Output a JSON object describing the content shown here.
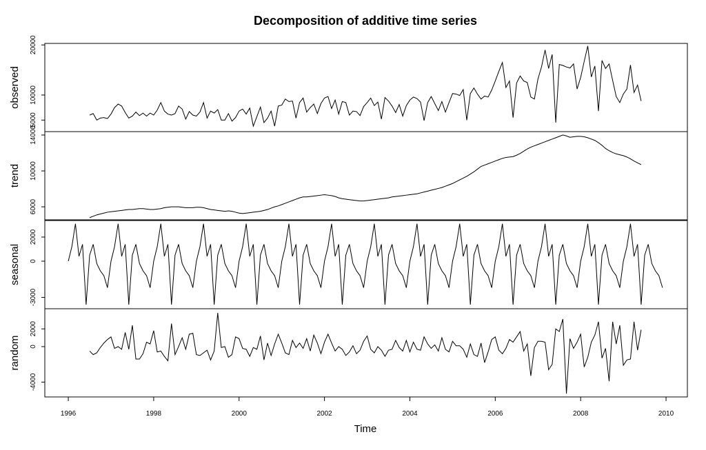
{
  "chart_data": {
    "type": "line",
    "title": "Decomposition of additive time series",
    "xlabel": "Time",
    "xlim": [
      1995.45,
      2010.5
    ],
    "xticks": [
      1996,
      1998,
      2000,
      2002,
      2004,
      2006,
      2008,
      2010
    ],
    "x": [
      1996,
      1996.083,
      1996.167,
      1996.25,
      1996.333,
      1996.417,
      1996.5,
      1996.583,
      1996.667,
      1996.75,
      1996.833,
      1996.917,
      1997,
      1997.083,
      1997.167,
      1997.25,
      1997.333,
      1997.417,
      1997.5,
      1997.583,
      1997.667,
      1997.75,
      1997.833,
      1997.917,
      1998,
      1998.083,
      1998.167,
      1998.25,
      1998.333,
      1998.417,
      1998.5,
      1998.583,
      1998.667,
      1998.75,
      1998.833,
      1998.917,
      1999,
      1999.083,
      1999.167,
      1999.25,
      1999.333,
      1999.417,
      1999.5,
      1999.583,
      1999.667,
      1999.75,
      1999.833,
      1999.917,
      2000,
      2000.083,
      2000.167,
      2000.25,
      2000.333,
      2000.417,
      2000.5,
      2000.583,
      2000.667,
      2000.75,
      2000.833,
      2000.917,
      2001,
      2001.083,
      2001.167,
      2001.25,
      2001.333,
      2001.417,
      2001.5,
      2001.583,
      2001.667,
      2001.75,
      2001.833,
      2001.917,
      2002,
      2002.083,
      2002.167,
      2002.25,
      2002.333,
      2002.417,
      2002.5,
      2002.583,
      2002.667,
      2002.75,
      2002.833,
      2002.917,
      2003,
      2003.083,
      2003.167,
      2003.25,
      2003.333,
      2003.417,
      2003.5,
      2003.583,
      2003.667,
      2003.75,
      2003.833,
      2003.917,
      2004,
      2004.083,
      2004.167,
      2004.25,
      2004.333,
      2004.417,
      2004.5,
      2004.583,
      2004.667,
      2004.75,
      2004.833,
      2004.917,
      2005,
      2005.083,
      2005.167,
      2005.25,
      2005.333,
      2005.417,
      2005.5,
      2005.583,
      2005.667,
      2005.75,
      2005.833,
      2005.917,
      2006,
      2006.083,
      2006.167,
      2006.25,
      2006.333,
      2006.417,
      2006.5,
      2006.583,
      2006.667,
      2006.75,
      2006.833,
      2006.917,
      2007,
      2007.083,
      2007.167,
      2007.25,
      2007.333,
      2007.417,
      2007.5,
      2007.583,
      2007.667,
      2007.75,
      2007.833,
      2007.917,
      2008,
      2008.083,
      2008.167,
      2008.25,
      2008.333,
      2008.417,
      2008.5,
      2008.583,
      2008.667,
      2008.75,
      2008.833,
      2008.917,
      2009,
      2009.083,
      2009.167,
      2009.25,
      2009.333,
      2009.417,
      2009.5,
      2009.583,
      2009.667,
      2009.75,
      2009.833,
      2009.917
    ],
    "series": [
      {
        "name": "observed",
        "color": "#000000",
        "ylim": [
          2700,
          20300
        ],
        "yticks": [
          5000,
          10000,
          20000
        ],
        "values": [
          null,
          null,
          null,
          null,
          null,
          null,
          6000,
          6300,
          5000,
          5400,
          5500,
          5300,
          6200,
          7500,
          8200,
          7800,
          6500,
          5400,
          5800,
          6600,
          5900,
          6400,
          5800,
          6400,
          6000,
          7000,
          8500,
          6800,
          6200,
          6000,
          6300,
          7800,
          7200,
          5200,
          6700,
          6000,
          5800,
          6600,
          8500,
          5400,
          6800,
          6400,
          7100,
          5000,
          5000,
          6300,
          4800,
          5500,
          6800,
          7200,
          6200,
          7400,
          3800,
          5700,
          7600,
          4500,
          5400,
          6800,
          3800,
          7800,
          8000,
          9200,
          8700,
          8800,
          5400,
          8500,
          9400,
          6600,
          7500,
          8200,
          6300,
          8300,
          9400,
          9700,
          7300,
          9000,
          6200,
          8700,
          8500,
          6000,
          6800,
          6700,
          5900,
          7700,
          8500,
          9400,
          7900,
          8600,
          5200,
          9500,
          8800,
          7800,
          6500,
          8100,
          5800,
          7900,
          9000,
          9600,
          9300,
          8600,
          4900,
          8500,
          9700,
          8300,
          6900,
          8700,
          6600,
          8500,
          10300,
          10200,
          9900,
          11100,
          5000,
          10300,
          11400,
          10200,
          9200,
          9800,
          9600,
          11000,
          12800,
          14700,
          16500,
          11500,
          12800,
          5500,
          12400,
          13800,
          12800,
          12500,
          9600,
          9200,
          13200,
          15600,
          19000,
          15300,
          18100,
          4500,
          16100,
          15900,
          15600,
          15400,
          16200,
          11200,
          13500,
          16700,
          19800,
          13600,
          15800,
          6800,
          16900,
          15300,
          16200,
          12900,
          9700,
          8500,
          10200,
          11200,
          16000,
          10500,
          12000,
          8800,
          null,
          null,
          null,
          null,
          null,
          null
        ]
      },
      {
        "name": "trend",
        "color": "#000000",
        "ylim": [
          4550,
          14380
        ],
        "yticks": [
          6000,
          10000,
          14000
        ],
        "values": [
          null,
          null,
          null,
          null,
          null,
          null,
          4800,
          4950,
          5100,
          5200,
          5300,
          5400,
          5450,
          5500,
          5550,
          5600,
          5650,
          5700,
          5700,
          5750,
          5800,
          5800,
          5750,
          5700,
          5700,
          5750,
          5800,
          5900,
          5950,
          6000,
          6000,
          6000,
          5950,
          5900,
          5900,
          5900,
          5950,
          5950,
          5900,
          5800,
          5700,
          5650,
          5600,
          5550,
          5500,
          5550,
          5500,
          5400,
          5300,
          5250,
          5300,
          5350,
          5400,
          5450,
          5500,
          5600,
          5700,
          5850,
          6000,
          6100,
          6250,
          6400,
          6550,
          6700,
          6850,
          7000,
          7100,
          7100,
          7150,
          7200,
          7250,
          7300,
          7350,
          7300,
          7250,
          7150,
          7000,
          6900,
          6850,
          6800,
          6750,
          6700,
          6650,
          6650,
          6700,
          6750,
          6800,
          6850,
          6900,
          6950,
          7000,
          7100,
          7150,
          7200,
          7250,
          7300,
          7350,
          7400,
          7450,
          7550,
          7650,
          7750,
          7850,
          7950,
          8050,
          8150,
          8300,
          8450,
          8600,
          8800,
          9000,
          9200,
          9400,
          9650,
          9900,
          10200,
          10500,
          10650,
          10800,
          10950,
          11100,
          11250,
          11400,
          11500,
          11550,
          11600,
          11750,
          11950,
          12200,
          12450,
          12650,
          12800,
          12950,
          13100,
          13250,
          13400,
          13550,
          13700,
          13850,
          14000,
          13900,
          13750,
          13800,
          13850,
          13850,
          13800,
          13700,
          13550,
          13400,
          13150,
          12850,
          12500,
          12250,
          12050,
          11900,
          11800,
          11700,
          11550,
          11350,
          11100,
          10900,
          10700,
          null,
          null,
          null,
          null,
          null,
          null
        ]
      },
      {
        "name": "seasonal",
        "color": "#000000",
        "ylim": [
          -3940,
          3370
        ],
        "yticks": [
          -3000,
          0,
          2000
        ],
        "values": [
          0,
          1200,
          3100,
          400,
          1400,
          -3600,
          500,
          1400,
          -200,
          -800,
          -1200,
          -2200,
          0,
          1200,
          3100,
          400,
          1400,
          -3600,
          500,
          1400,
          -200,
          -800,
          -1200,
          -2200,
          0,
          1200,
          3100,
          400,
          1400,
          -3600,
          500,
          1400,
          -200,
          -800,
          -1200,
          -2200,
          0,
          1200,
          3100,
          400,
          1400,
          -3600,
          500,
          1400,
          -200,
          -800,
          -1200,
          -2200,
          0,
          1200,
          3100,
          400,
          1400,
          -3600,
          500,
          1400,
          -200,
          -800,
          -1200,
          -2200,
          0,
          1200,
          3100,
          400,
          1400,
          -3600,
          500,
          1400,
          -200,
          -800,
          -1200,
          -2200,
          0,
          1200,
          3100,
          400,
          1400,
          -3600,
          500,
          1400,
          -200,
          -800,
          -1200,
          -2200,
          0,
          1200,
          3100,
          400,
          1400,
          -3600,
          500,
          1400,
          -200,
          -800,
          -1200,
          -2200,
          0,
          1200,
          3100,
          400,
          1400,
          -3600,
          500,
          1400,
          -200,
          -800,
          -1200,
          -2200,
          0,
          1200,
          3100,
          400,
          1400,
          -3600,
          500,
          1400,
          -200,
          -800,
          -1200,
          -2200,
          0,
          1200,
          3100,
          400,
          1400,
          -3600,
          500,
          1400,
          -200,
          -800,
          -1200,
          -2200,
          0,
          1200,
          3100,
          400,
          1400,
          -3600,
          500,
          1400,
          -200,
          -800,
          -1200,
          -2200,
          0,
          1200,
          3100,
          400,
          1400,
          -3600,
          500,
          1400,
          -200,
          -800,
          -1200,
          -2200,
          0,
          1200,
          3100,
          400,
          1400,
          -3600,
          500,
          1400,
          -200,
          -800,
          -1200,
          -2200
        ]
      },
      {
        "name": "random",
        "color": "#000000",
        "ylim": [
          -5670,
          4270
        ],
        "yticks": [
          -4000,
          0,
          2000
        ],
        "values": [
          null,
          null,
          null,
          null,
          null,
          null,
          -500,
          -900,
          -700,
          -100,
          400,
          800,
          1100,
          -200,
          0,
          -300,
          1600,
          -300,
          2400,
          -1400,
          -1400,
          -800,
          500,
          300,
          1800,
          -600,
          -500,
          -1100,
          -1600,
          2600,
          -900,
          0,
          1000,
          -300,
          1400,
          1500,
          -900,
          -1000,
          -700,
          -400,
          -1500,
          -500,
          3800,
          -100,
          0,
          -1200,
          -900,
          1100,
          900,
          -200,
          -300,
          -1100,
          -100,
          -300,
          1200,
          -1500,
          400,
          -1000,
          300,
          1400,
          400,
          -700,
          -900,
          700,
          -100,
          400,
          -200,
          900,
          -500,
          1300,
          400,
          -800,
          500,
          1400,
          400,
          -500,
          0,
          -300,
          -1000,
          -600,
          100,
          -800,
          -400,
          600,
          1200,
          -300,
          -700,
          0,
          -400,
          -1100,
          -400,
          -300,
          700,
          -100,
          -500,
          700,
          -600,
          500,
          -300,
          -400,
          1100,
          300,
          -200,
          200,
          -500,
          1000,
          -300,
          -600,
          600,
          100,
          100,
          -300,
          -1200,
          300,
          -900,
          -1100,
          400,
          -1800,
          -600,
          800,
          1100,
          -400,
          -800,
          -200,
          800,
          500,
          1100,
          1700,
          -500,
          300,
          -3300,
          -100,
          600,
          600,
          500,
          -2600,
          -2000,
          2000,
          1700,
          3100,
          -5300,
          900,
          -200,
          500,
          1400,
          -2300,
          -1200,
          500,
          1300,
          2800,
          -1300,
          -200,
          -3900,
          2800,
          300,
          2400,
          -2100,
          -1500,
          -1400,
          2800,
          -400,
          1900,
          null,
          null,
          null,
          null,
          null,
          null
        ]
      }
    ]
  }
}
